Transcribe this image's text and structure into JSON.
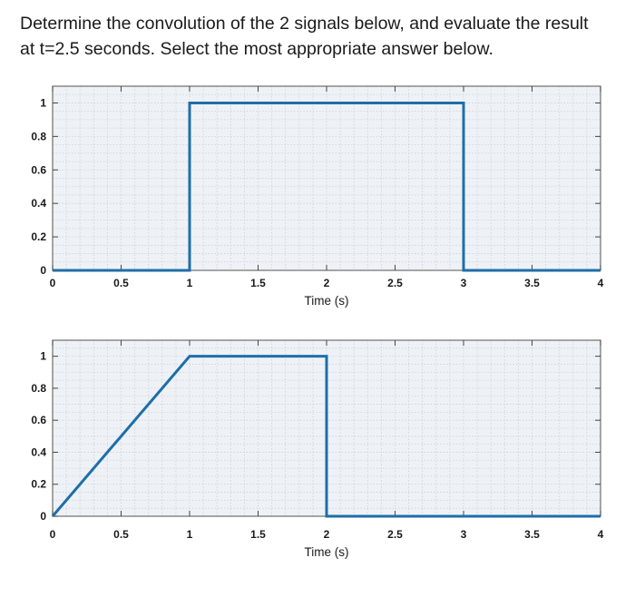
{
  "question": {
    "line1": "Determine the convolution of the 2 signals below, and evaluate the result",
    "line2": "at t=2.5 seconds. Select the most appropriate answer below."
  },
  "colors": {
    "signal": "#1f6ea8",
    "axes_bg": "#eef2f6",
    "grid": "#c9d1da",
    "border": "#6d6d6d"
  },
  "chart_data": [
    {
      "type": "line",
      "name": "top-plot",
      "x": [
        0,
        1,
        1,
        3,
        3,
        4
      ],
      "y": [
        0,
        0,
        1,
        1,
        0,
        0
      ],
      "xlim": [
        0,
        4
      ],
      "ylim": [
        0,
        1.1
      ],
      "xticks": [
        0,
        0.5,
        1,
        1.5,
        2,
        2.5,
        3,
        3.5,
        4
      ],
      "xtick_labels": [
        "0",
        "0.5",
        "1",
        "1.5",
        "2",
        "2.5",
        "3",
        "3.5",
        "4"
      ],
      "yticks": [
        0,
        0.2,
        0.4,
        0.6,
        0.8,
        1
      ],
      "ytick_labels": [
        "0",
        "0.2",
        "0.4",
        "0.6",
        "0.8",
        "1"
      ],
      "xlabel": "Time (s)",
      "ylabel": "",
      "grid": "minor"
    },
    {
      "type": "line",
      "name": "bottom-plot",
      "x": [
        0,
        1,
        2,
        2,
        4
      ],
      "y": [
        0,
        1,
        1,
        0,
        0
      ],
      "xlim": [
        0,
        4
      ],
      "ylim": [
        0,
        1.1
      ],
      "xticks": [
        0,
        0.5,
        1,
        1.5,
        2,
        2.5,
        3,
        3.5,
        4
      ],
      "xtick_labels": [
        "0",
        "0.5",
        "1",
        "1.5",
        "2",
        "2.5",
        "3",
        "3.5",
        "4"
      ],
      "yticks": [
        0,
        0.2,
        0.4,
        0.6,
        0.8,
        1
      ],
      "ytick_labels": [
        "0",
        "0.2",
        "0.4",
        "0.6",
        "0.8",
        "1"
      ],
      "xlabel": "Time (s)",
      "ylabel": "",
      "grid": "minor"
    }
  ]
}
